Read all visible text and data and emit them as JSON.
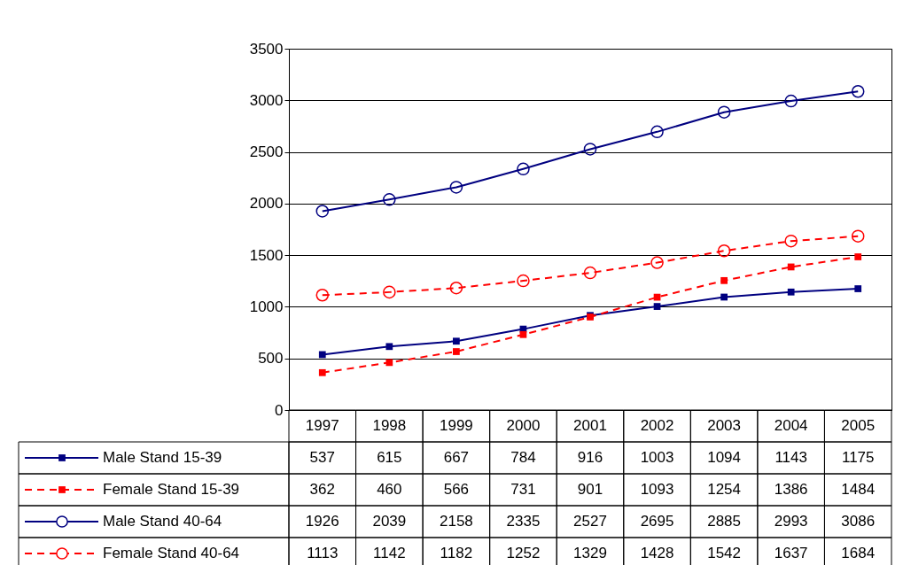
{
  "chart_data": {
    "type": "line",
    "categories": [
      "1997",
      "1998",
      "1999",
      "2000",
      "2001",
      "2002",
      "2003",
      "2004",
      "2005"
    ],
    "series": [
      {
        "name": "Male Stand 15-39",
        "color": "#000080",
        "marker": "square",
        "line_style": "solid",
        "values": [
          537,
          615,
          667,
          784,
          916,
          1003,
          1094,
          1143,
          1175
        ]
      },
      {
        "name": "Female Stand 15-39",
        "color": "#ff0000",
        "marker": "square",
        "line_style": "dashed",
        "values": [
          362,
          460,
          566,
          731,
          901,
          1093,
          1254,
          1386,
          1484
        ]
      },
      {
        "name": "Male Stand 40-64",
        "color": "#000080",
        "marker": "circle",
        "line_style": "solid",
        "values": [
          1926,
          2039,
          2158,
          2335,
          2527,
          2695,
          2885,
          2993,
          3086
        ]
      },
      {
        "name": "Female Stand 40-64",
        "color": "#ff0000",
        "marker": "circle",
        "line_style": "dashed",
        "values": [
          1113,
          1142,
          1182,
          1252,
          1329,
          1428,
          1542,
          1637,
          1684
        ]
      }
    ],
    "ylim": [
      0,
      3500
    ],
    "yticks": [
      0,
      500,
      1000,
      1500,
      2000,
      2500,
      3000,
      3500
    ],
    "grid": "y",
    "legend": "bottom",
    "data_labels": true
  }
}
